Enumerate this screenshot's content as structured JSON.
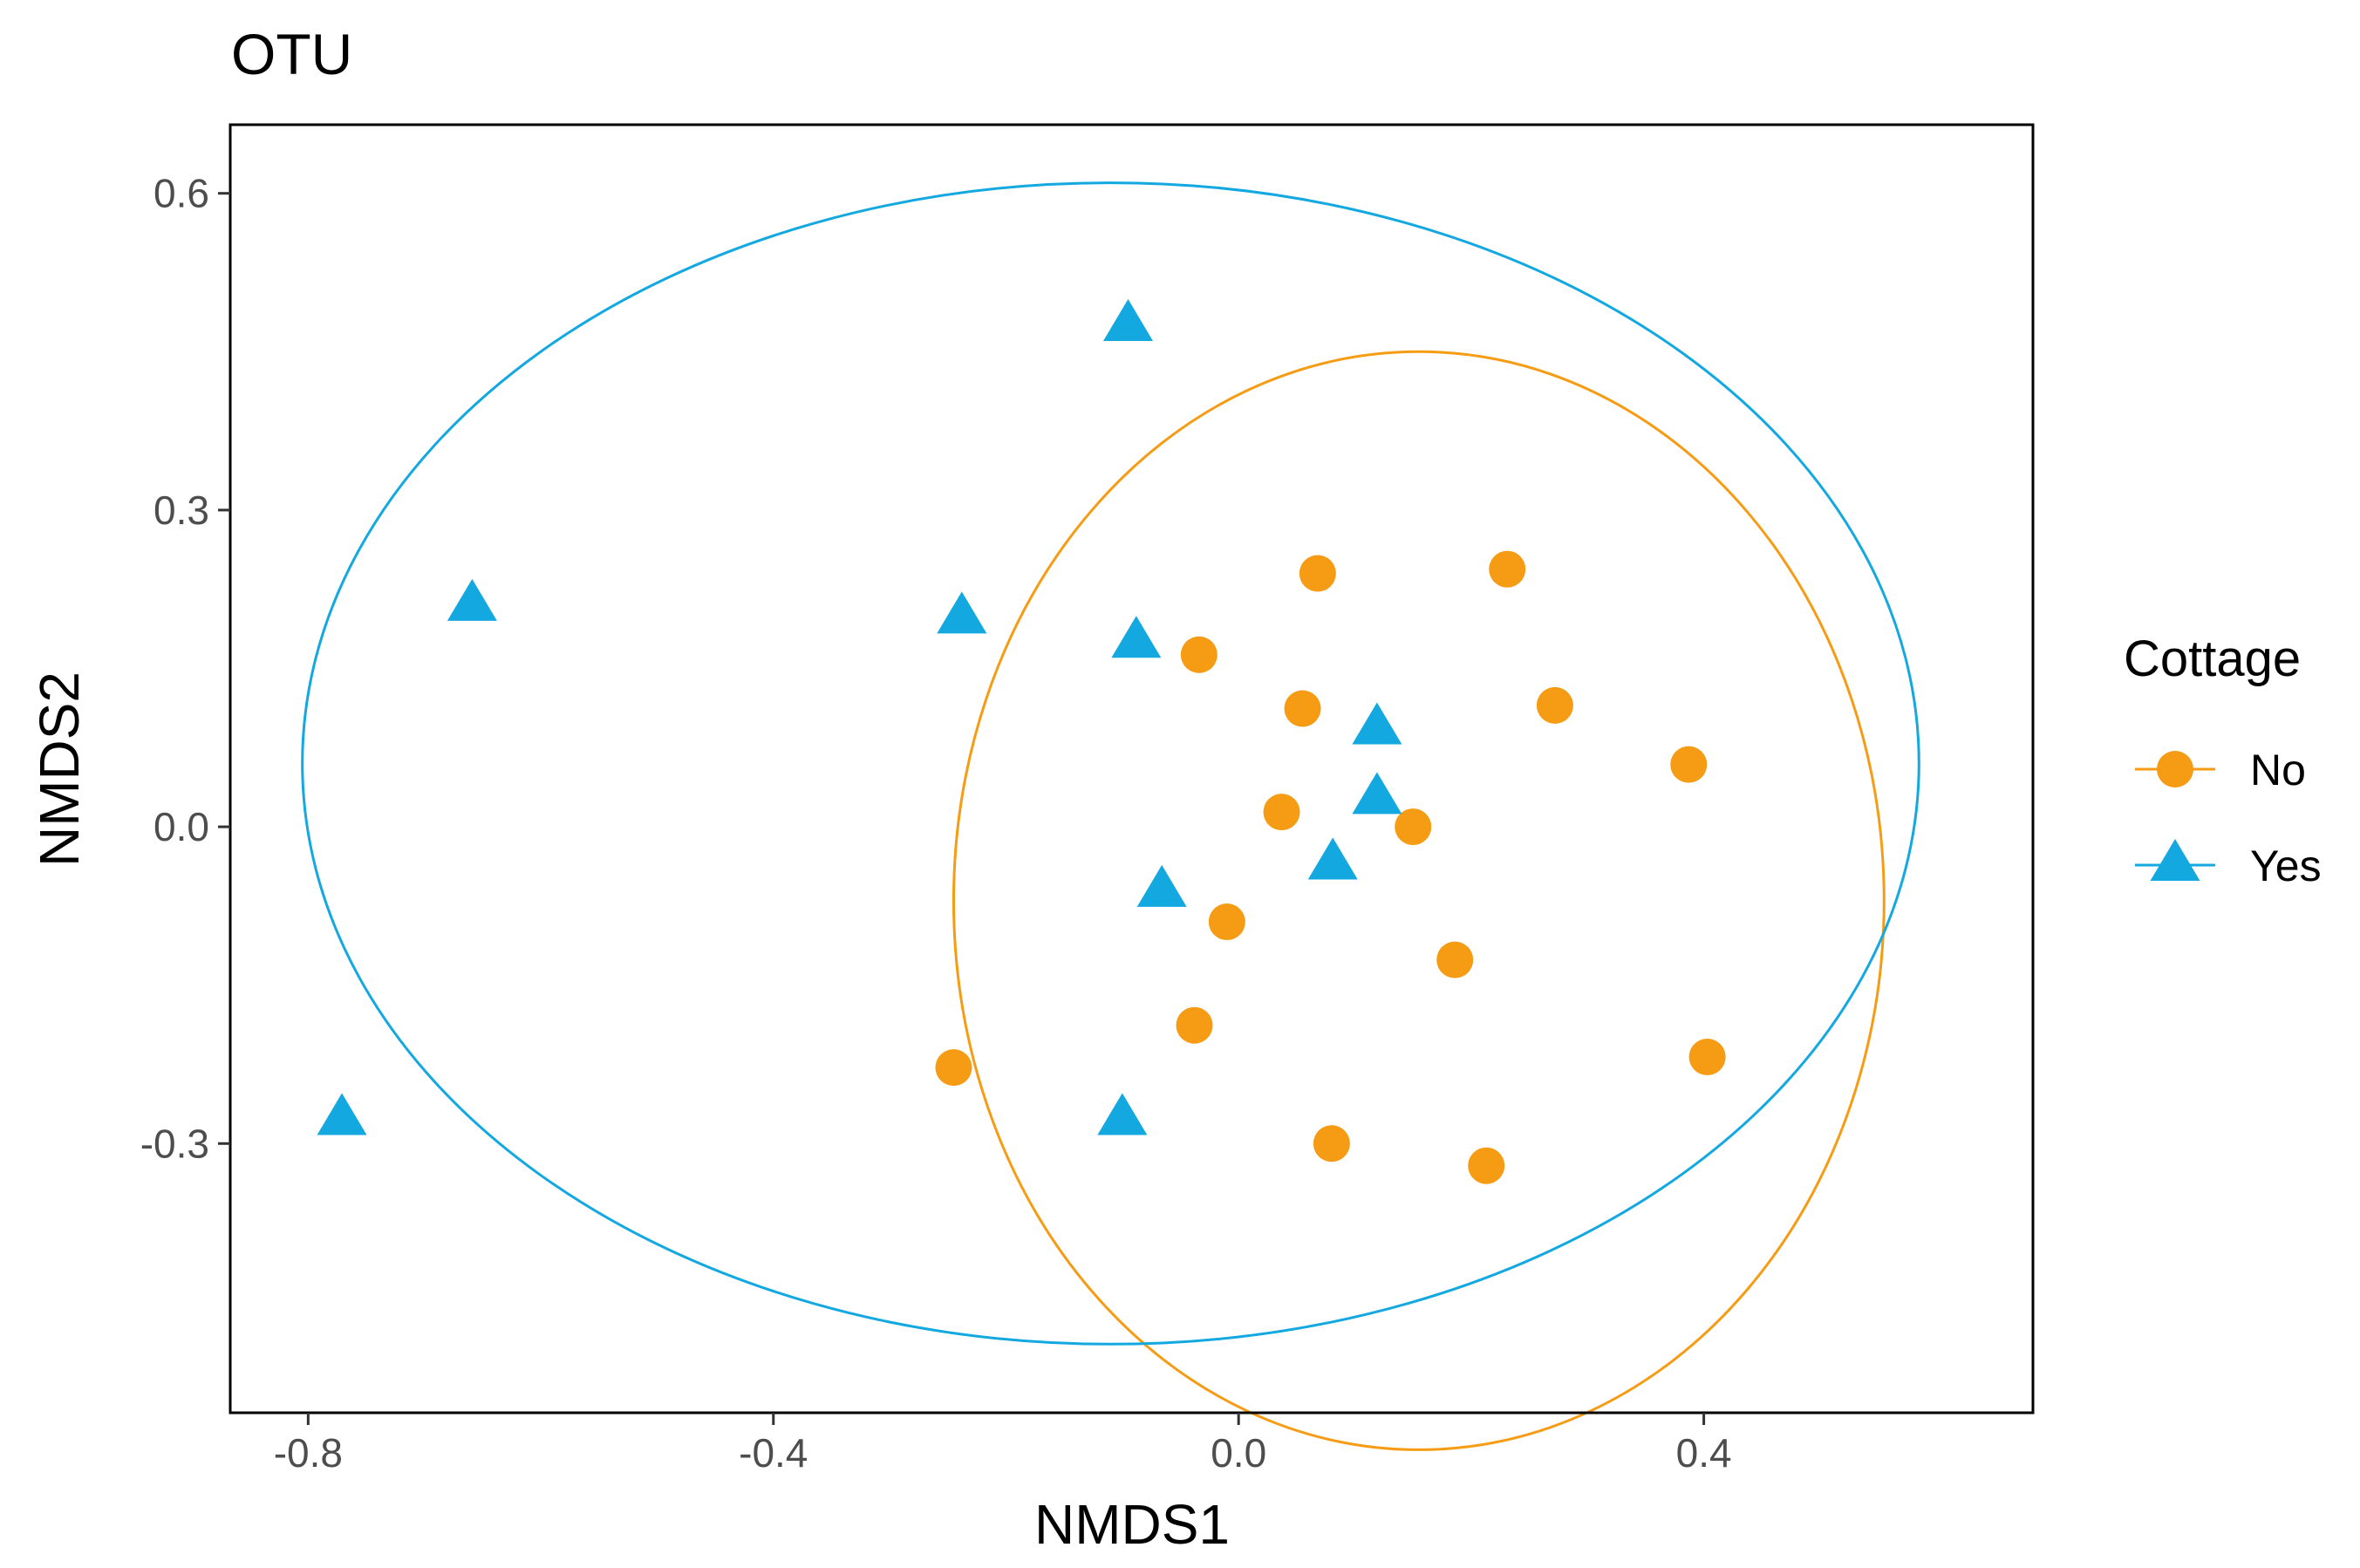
{
  "chart_data": {
    "type": "scatter",
    "title": "OTU",
    "xlabel": "NMDS1",
    "ylabel": "NMDS2",
    "xlim": [
      -0.867,
      0.683
    ],
    "ylim": [
      -0.555,
      0.665
    ],
    "xticks": [
      -0.8,
      -0.4,
      0.0,
      0.4
    ],
    "xtick_labels": [
      "-0.8",
      "-0.4",
      "0.0",
      "0.4"
    ],
    "yticks": [
      -0.3,
      0.0,
      0.3,
      0.6
    ],
    "ytick_labels": [
      "-0.3",
      "0.0",
      "0.3",
      "0.6"
    ],
    "grid": false,
    "legend": {
      "title": "Cottage",
      "position": "right"
    },
    "series": [
      {
        "name": "No",
        "marker": "circle",
        "color": "#f59c14",
        "points": [
          {
            "x": 0.068,
            "y": 0.24
          },
          {
            "x": 0.231,
            "y": 0.244
          },
          {
            "x": -0.034,
            "y": 0.163
          },
          {
            "x": 0.055,
            "y": 0.112
          },
          {
            "x": 0.272,
            "y": 0.115
          },
          {
            "x": 0.387,
            "y": 0.059
          },
          {
            "x": 0.037,
            "y": 0.014
          },
          {
            "x": 0.15,
            "y": 0.0
          },
          {
            "x": -0.01,
            "y": -0.09
          },
          {
            "x": 0.186,
            "y": -0.126
          },
          {
            "x": -0.038,
            "y": -0.188
          },
          {
            "x": -0.245,
            "y": -0.228
          },
          {
            "x": 0.403,
            "y": -0.218
          },
          {
            "x": 0.08,
            "y": -0.3
          },
          {
            "x": 0.213,
            "y": -0.321
          }
        ],
        "ellipse": {
          "center": [
            0.155,
            -0.07
          ],
          "radii": [
            0.4,
            0.52
          ]
        }
      },
      {
        "name": "Yes",
        "marker": "triangle",
        "color": "#14a8e0",
        "points": [
          {
            "x": -0.095,
            "y": 0.475
          },
          {
            "x": -0.659,
            "y": 0.21
          },
          {
            "x": -0.238,
            "y": 0.198
          },
          {
            "x": -0.088,
            "y": 0.175
          },
          {
            "x": 0.119,
            "y": 0.093
          },
          {
            "x": 0.119,
            "y": 0.027
          },
          {
            "x": 0.081,
            "y": -0.035
          },
          {
            "x": -0.066,
            "y": -0.061
          },
          {
            "x": -0.771,
            "y": -0.277
          },
          {
            "x": -0.1,
            "y": -0.277
          }
        ],
        "ellipse": {
          "center": [
            -0.11,
            0.06
          ],
          "radii": [
            0.695,
            0.55
          ]
        }
      }
    ]
  }
}
